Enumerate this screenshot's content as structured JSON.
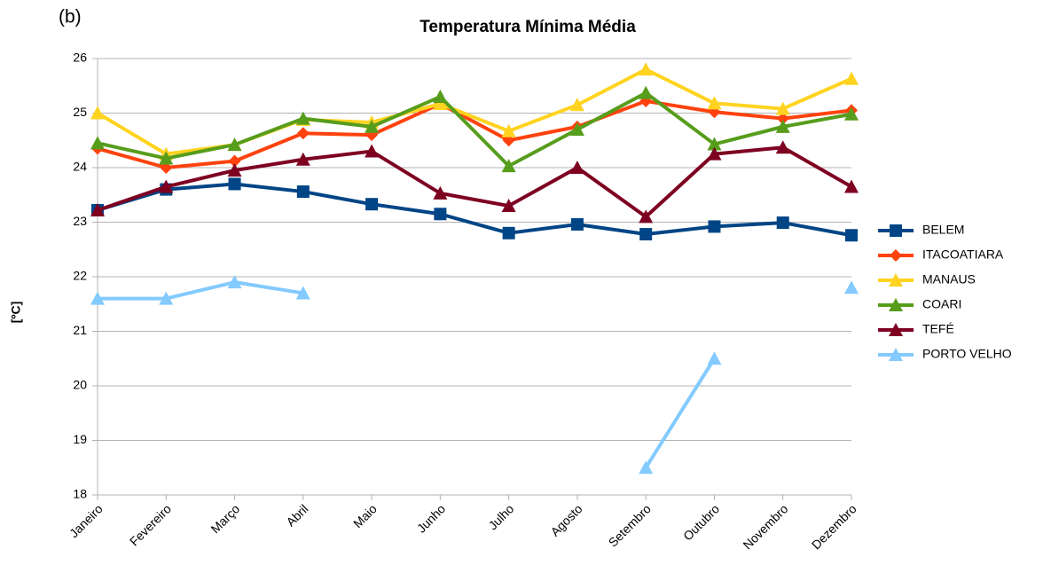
{
  "chart_data": {
    "type": "line",
    "panel_label": "(b)",
    "title": "Temperatura Mínima Média",
    "y_label": "[ºC]",
    "categories": [
      "Janeiro",
      "Fevereiro",
      "Março",
      "Abril",
      "Maio",
      "Junho",
      "Julho",
      "Agosto",
      "Setembro",
      "Outubro",
      "Novembro",
      "Dezembro"
    ],
    "ylim": [
      18,
      26
    ],
    "yticks": [
      18,
      19,
      20,
      21,
      22,
      23,
      24,
      25,
      26
    ],
    "grid": true,
    "legend": "right",
    "series": [
      {
        "name": "BELEM",
        "color": "#004586",
        "marker": "square",
        "values": [
          23.22,
          23.6,
          23.7,
          23.56,
          23.33,
          23.15,
          22.8,
          22.96,
          22.78,
          22.92,
          22.99,
          22.76
        ]
      },
      {
        "name": "ITACOATIARA",
        "color": "#ff420e",
        "marker": "diamond",
        "values": [
          24.35,
          24.0,
          24.12,
          24.63,
          24.6,
          25.17,
          24.5,
          24.75,
          25.22,
          25.02,
          24.9,
          25.05
        ]
      },
      {
        "name": "MANAUS",
        "color": "#ffd320",
        "marker": "triangle",
        "values": [
          25.0,
          24.25,
          24.42,
          24.88,
          24.83,
          25.17,
          24.67,
          25.15,
          25.8,
          25.18,
          25.08,
          25.63
        ]
      },
      {
        "name": "COARI",
        "color": "#579d1c",
        "marker": "triangle",
        "values": [
          24.45,
          24.17,
          24.42,
          24.9,
          24.75,
          25.3,
          24.03,
          24.7,
          25.37,
          24.43,
          24.75,
          24.98
        ]
      },
      {
        "name": "TEFÉ",
        "color": "#7e0021",
        "marker": "triangle",
        "values": [
          23.22,
          23.65,
          23.95,
          24.15,
          24.3,
          23.53,
          23.3,
          24.0,
          23.1,
          24.25,
          24.37,
          23.65
        ]
      },
      {
        "name": "PORTO VELHO",
        "color": "#83caff",
        "marker": "triangle",
        "values": [
          21.6,
          21.6,
          21.9,
          21.7,
          null,
          null,
          null,
          null,
          18.5,
          20.5,
          null,
          21.8
        ]
      }
    ]
  }
}
